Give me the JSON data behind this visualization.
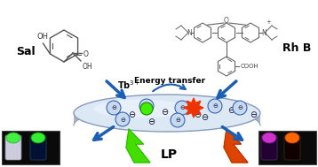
{
  "bg_color": "#ffffff",
  "sal_label": "Sal",
  "rhb_label": "Rh B",
  "energy_transfer_label": "Energy transfer",
  "tb_label": "Tb$^{3+}$",
  "lp_label": "LP",
  "arrow_color": "#1a5fb4",
  "green_lightning_color": "#44dd00",
  "orange_lightning_color": "#dd4400",
  "tb_dot_color": "#44ee00",
  "rh_burst_color": "#ee3300",
  "disk_top_color": "#ddeeff",
  "disk_side_color": "#aabbcc",
  "disk_edge_color": "#8899bb",
  "circle_face": "#c8d8ee",
  "circle_edge": "#2255aa"
}
